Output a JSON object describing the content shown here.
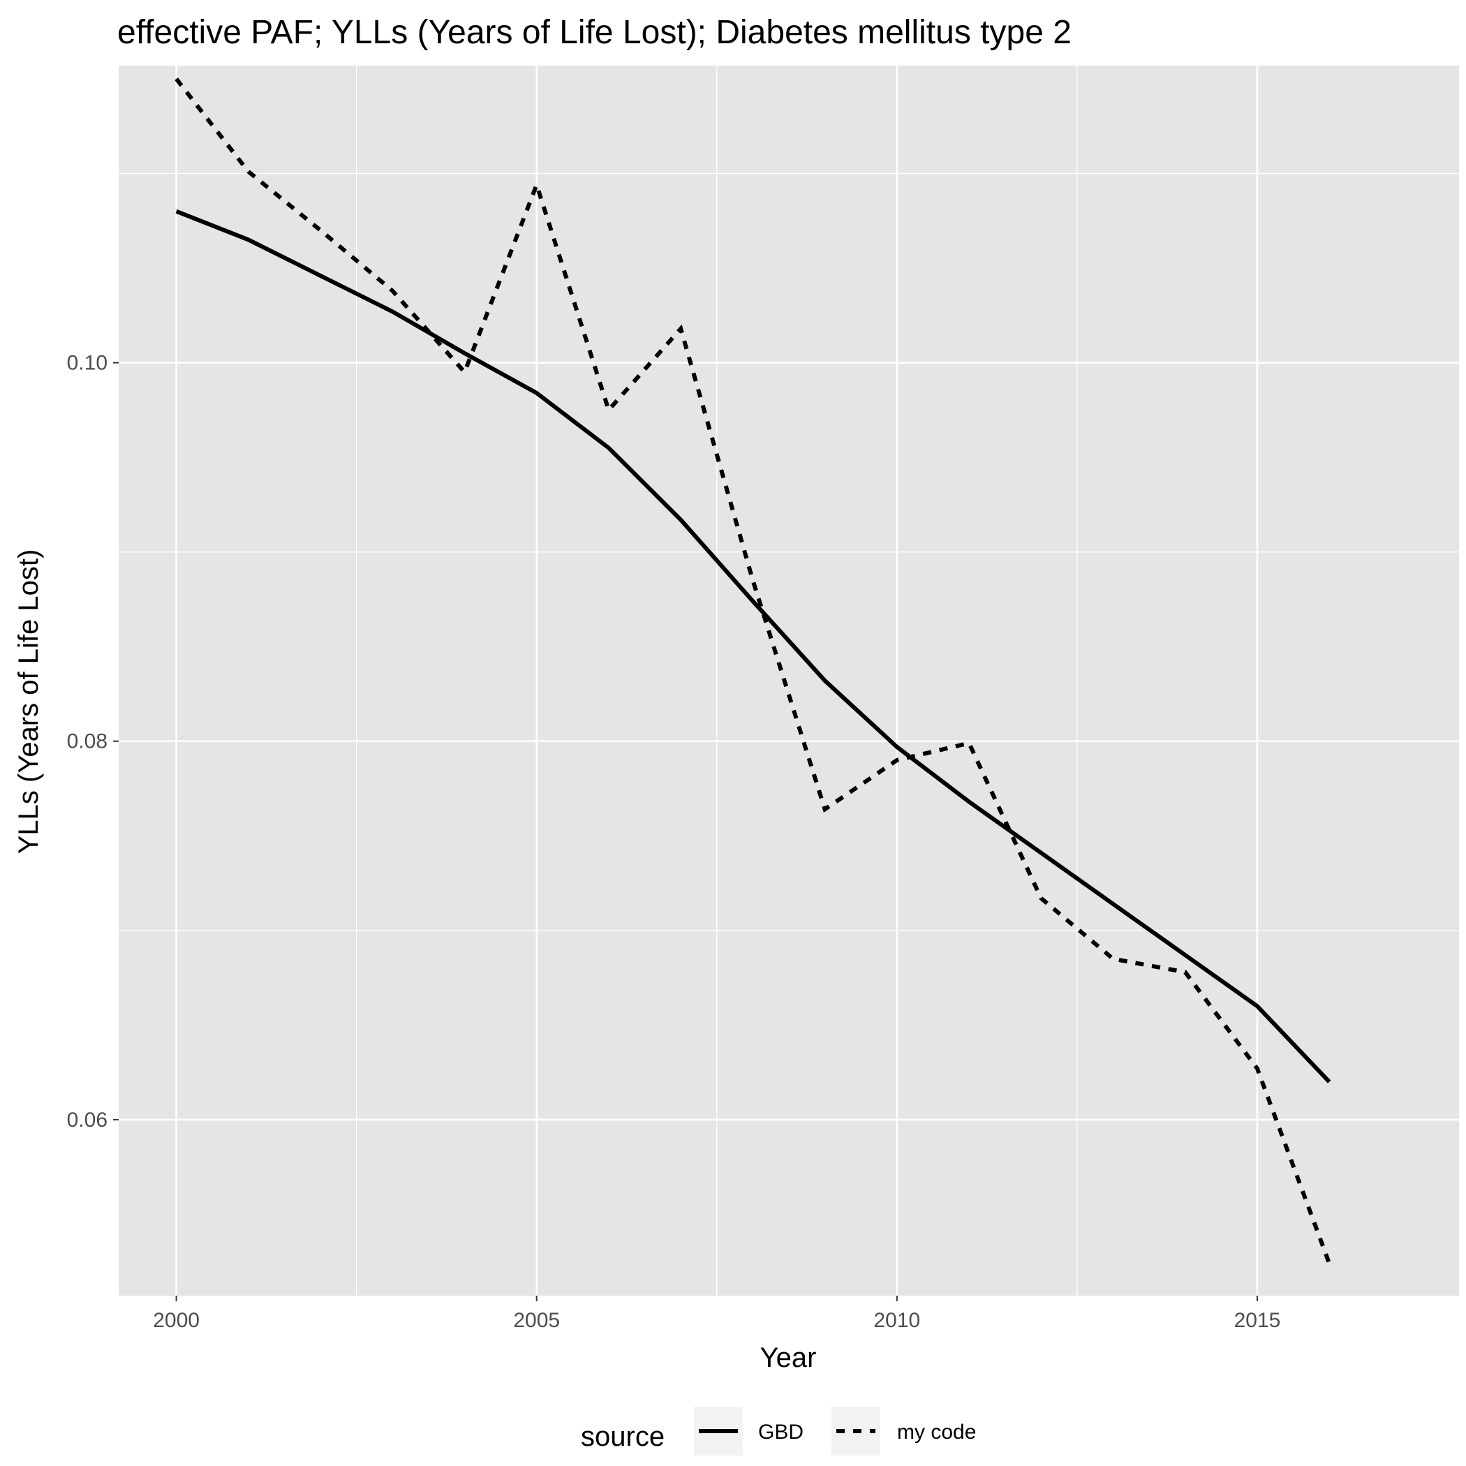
{
  "chart_data": {
    "type": "line",
    "title": "effective PAF; YLLs (Years of Life Lost); Diabetes mellitus type 2",
    "xlabel": "Year",
    "ylabel": "YLLs (Years of Life Lost)",
    "x": [
      2000,
      2001,
      2002,
      2003,
      2004,
      2005,
      2006,
      2007,
      2008,
      2009,
      2010,
      2011,
      2012,
      2013,
      2014,
      2015,
      2016
    ],
    "xlim": [
      1999.2,
      2017.8
    ],
    "ylim": [
      0.0507,
      0.1157
    ],
    "xticks": [
      2000,
      2005,
      2010,
      2015
    ],
    "xtick_labels": [
      "2000",
      "2005",
      "2010",
      "2015"
    ],
    "yticks": [
      0.06,
      0.08,
      0.1
    ],
    "ytick_labels": [
      "0.06",
      "0.08",
      "0.10"
    ],
    "grid": true,
    "legend_position": "bottom",
    "legend_title": "source",
    "series": [
      {
        "name": "GBD",
        "line_style": "solid",
        "values": [
          0.108,
          0.1065,
          0.1046,
          0.1027,
          0.1005,
          0.0984,
          0.0955,
          0.0917,
          0.0874,
          0.0832,
          0.0797,
          0.0768,
          0.0741,
          0.0714,
          0.0687,
          0.066,
          0.062
        ]
      },
      {
        "name": "my code",
        "line_style": "dashed",
        "values": [
          0.115,
          0.1101,
          0.107,
          0.1038,
          0.0995,
          0.1094,
          0.0975,
          0.1018,
          0.0885,
          0.0764,
          0.079,
          0.0799,
          0.0717,
          0.0685,
          0.0678,
          0.0627,
          0.0524
        ]
      }
    ],
    "colors": {
      "panel_background": "#e5e5e5",
      "gridline": "#ffffff",
      "line": "#000000",
      "tick_text": "#4d4d4d",
      "legend_key_background": "#f2f2f2"
    }
  }
}
